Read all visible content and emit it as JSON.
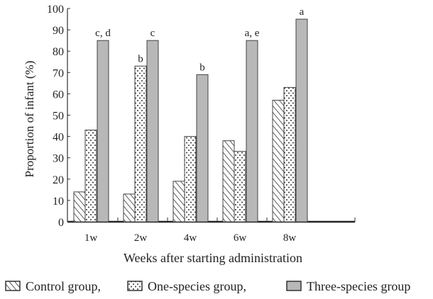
{
  "chart_data": {
    "type": "bar",
    "title": "",
    "xlabel": "Weeks after starting administration",
    "ylabel": "Proportion of infant (%)",
    "ylim": [
      0,
      100
    ],
    "yticks": [
      0,
      10,
      20,
      30,
      40,
      50,
      60,
      70,
      80,
      90,
      100
    ],
    "grid": false,
    "legend_position": "bottom",
    "categories": [
      "1w",
      "2w",
      "4w",
      "6w",
      "8w"
    ],
    "series": [
      {
        "name": "Control group,",
        "pattern": "diagonal-hatch",
        "values": [
          14,
          13,
          19,
          38,
          57
        ]
      },
      {
        "name": "One-species group,",
        "pattern": "dots",
        "values": [
          43,
          73,
          40,
          33,
          63
        ]
      },
      {
        "name": "Three-species group",
        "pattern": "solid",
        "color": "#b8b8b8",
        "values": [
          85,
          85,
          69,
          85,
          95
        ]
      }
    ],
    "annotations": [
      {
        "series": 2,
        "category": "1w",
        "text": "c, d"
      },
      {
        "series": 2,
        "category": "2w",
        "text": "c"
      },
      {
        "series": 1,
        "category": "2w",
        "text": "b"
      },
      {
        "series": 2,
        "category": "4w",
        "text": "b"
      },
      {
        "series": 2,
        "category": "6w",
        "text": "a, e"
      },
      {
        "series": 2,
        "category": "8w",
        "text": "a"
      }
    ]
  }
}
